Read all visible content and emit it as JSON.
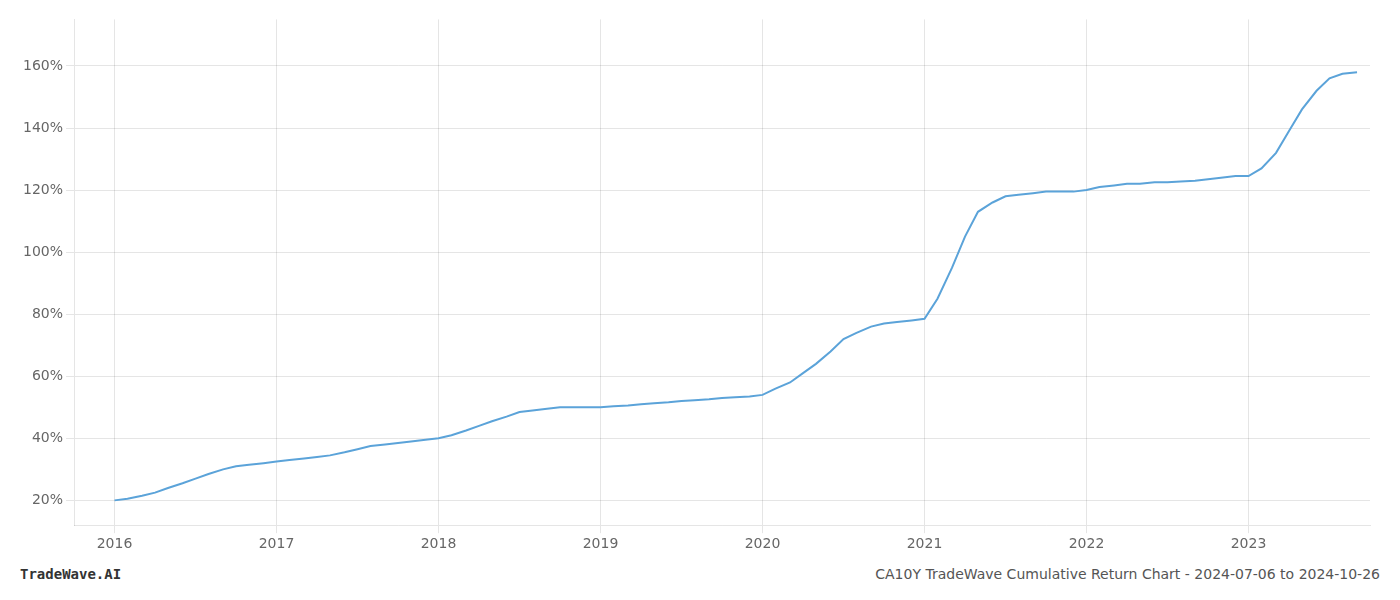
{
  "chart_data": {
    "type": "line",
    "title": "CA10Y TradeWave Cumulative Return Chart - 2024-07-06 to 2024-10-26",
    "annotations": [
      "TradeWave.AI"
    ],
    "color": "#5ba3d9",
    "grid": true,
    "x": [
      2016.0,
      2016.08,
      2016.17,
      2016.25,
      2016.33,
      2016.42,
      2016.5,
      2016.58,
      2016.67,
      2016.75,
      2016.83,
      2016.92,
      2017.0,
      2017.08,
      2017.17,
      2017.25,
      2017.33,
      2017.42,
      2017.5,
      2017.58,
      2017.67,
      2017.75,
      2017.83,
      2017.92,
      2018.0,
      2018.08,
      2018.17,
      2018.25,
      2018.33,
      2018.42,
      2018.5,
      2018.58,
      2018.67,
      2018.75,
      2018.83,
      2018.92,
      2019.0,
      2019.08,
      2019.17,
      2019.25,
      2019.33,
      2019.42,
      2019.5,
      2019.58,
      2019.67,
      2019.75,
      2019.83,
      2019.92,
      2020.0,
      2020.08,
      2020.17,
      2020.25,
      2020.33,
      2020.42,
      2020.5,
      2020.58,
      2020.67,
      2020.75,
      2020.83,
      2020.92,
      2021.0,
      2021.08,
      2021.17,
      2021.25,
      2021.33,
      2021.42,
      2021.5,
      2021.58,
      2021.67,
      2021.75,
      2021.83,
      2021.92,
      2022.0,
      2022.08,
      2022.17,
      2022.25,
      2022.33,
      2022.42,
      2022.5,
      2022.58,
      2022.67,
      2022.75,
      2022.83,
      2022.92,
      2023.0,
      2023.08,
      2023.17,
      2023.25,
      2023.33,
      2023.42,
      2023.5,
      2023.58,
      2023.67
    ],
    "values": [
      20.0,
      20.5,
      21.5,
      22.5,
      24.0,
      25.5,
      27.0,
      28.5,
      30.0,
      31.0,
      31.5,
      32.0,
      32.5,
      33.0,
      33.5,
      34.0,
      34.5,
      35.5,
      36.5,
      37.5,
      38.0,
      38.5,
      39.0,
      39.5,
      40.0,
      41.0,
      42.5,
      44.0,
      45.5,
      47.0,
      48.5,
      49.0,
      49.5,
      50.0,
      50.0,
      50.0,
      50.0,
      50.3,
      50.6,
      51.0,
      51.3,
      51.6,
      52.0,
      52.3,
      52.6,
      53.0,
      53.2,
      53.5,
      54.0,
      56.0,
      58.0,
      61.0,
      64.0,
      68.0,
      72.0,
      74.0,
      76.0,
      77.0,
      77.5,
      78.0,
      78.5,
      85.0,
      95.0,
      105.0,
      113.0,
      116.0,
      118.0,
      118.5,
      119.0,
      119.5,
      119.5,
      119.5,
      120.0,
      121.0,
      121.5,
      122.0,
      122.0,
      122.5,
      122.5,
      122.8,
      123.0,
      123.5,
      124.0,
      124.5,
      124.5,
      127.0,
      132.0,
      139.0,
      146.0,
      152.0,
      156.0,
      157.5,
      158.0
    ],
    "xlim": [
      2015.75,
      2023.75
    ],
    "ylim": [
      12,
      175
    ],
    "xticks": [
      2016,
      2017,
      2018,
      2019,
      2020,
      2021,
      2022,
      2023
    ],
    "yticks": [
      {
        "value": 20,
        "label": "20%"
      },
      {
        "value": 40,
        "label": "40%"
      },
      {
        "value": 60,
        "label": "60%"
      },
      {
        "value": 80,
        "label": "80%"
      },
      {
        "value": 100,
        "label": "100%"
      },
      {
        "value": 120,
        "label": "120%"
      },
      {
        "value": 140,
        "label": "140%"
      },
      {
        "value": 160,
        "label": "160%"
      }
    ]
  }
}
